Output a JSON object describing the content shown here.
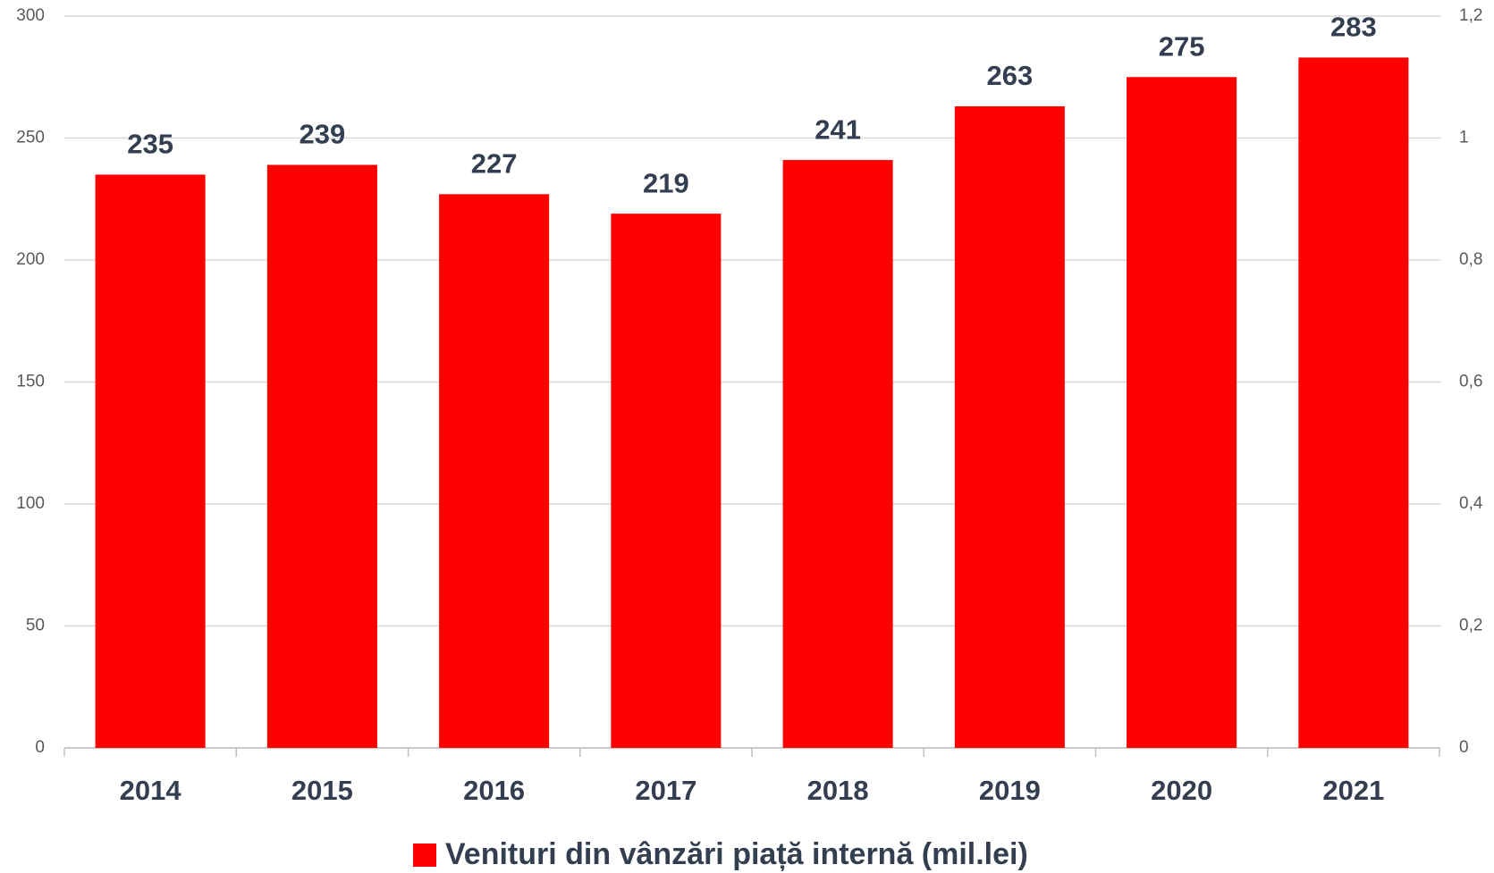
{
  "chart_data": {
    "type": "bar",
    "categories": [
      "2014",
      "2015",
      "2016",
      "2017",
      "2018",
      "2019",
      "2020",
      "2021"
    ],
    "series": [
      {
        "name": "Venituri din vânzări piață internă (mil.lei)",
        "color": "#ff0000",
        "values": [
          235,
          239,
          227,
          219,
          241,
          263,
          275,
          283
        ]
      }
    ],
    "ylim": [
      0,
      300
    ],
    "yticks": [
      0,
      50,
      100,
      150,
      200,
      250,
      300
    ],
    "y2lim": [
      0,
      1.2
    ],
    "y2ticks": [
      0,
      {
        "value": 0.2,
        "label": "0,2"
      },
      {
        "value": 0.4,
        "label": "0,4"
      },
      {
        "value": 0.6,
        "label": "0,6"
      },
      {
        "value": 0.8,
        "label": "0,8"
      },
      1,
      {
        "value": 1.2,
        "label": "1,2"
      }
    ],
    "grid": true,
    "legend": "bottom"
  }
}
